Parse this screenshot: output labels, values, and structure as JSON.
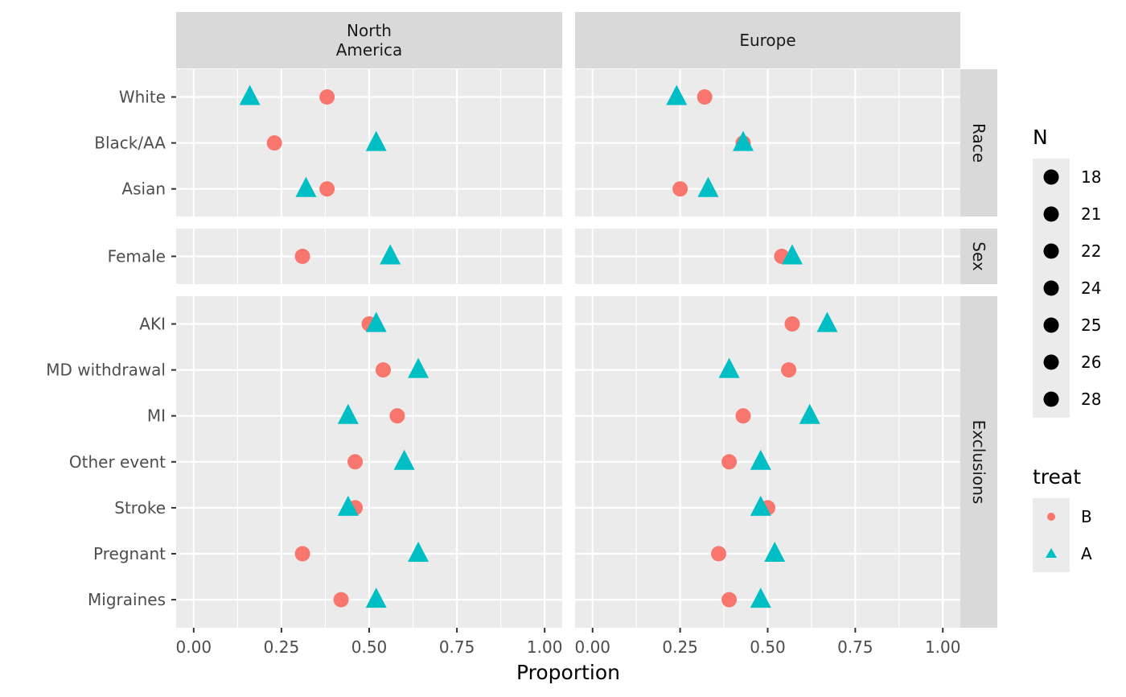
{
  "chart_data": {
    "type": "scatter",
    "xlabel": "Proportion",
    "xlim": [
      -0.05,
      1.05
    ],
    "x_ticks": [
      0.0,
      0.25,
      0.5,
      0.75,
      1.0
    ],
    "x_tick_labels": [
      "0.00",
      "0.25",
      "0.50",
      "0.75",
      "1.00"
    ],
    "columns": [
      {
        "key": "na",
        "label_lines": [
          "North",
          "America"
        ]
      },
      {
        "key": "eu",
        "label_lines": [
          "Europe"
        ]
      }
    ],
    "rows": [
      {
        "key": "race",
        "label": "Race",
        "categories": [
          "White",
          "Black/AA",
          "Asian"
        ]
      },
      {
        "key": "sex",
        "label": "Sex",
        "categories": [
          "Female"
        ]
      },
      {
        "key": "excl",
        "label": "Exclusions",
        "categories": [
          "AKI",
          "MD withdrawal",
          "MI",
          "Other event",
          "Stroke",
          "Pregnant",
          "Migraines"
        ]
      }
    ],
    "series": [
      {
        "name": "B",
        "shape": "circle",
        "color": "#F8766D",
        "values": {
          "na": {
            "White": 0.38,
            "Black/AA": 0.23,
            "Asian": 0.38,
            "Female": 0.31,
            "AKI": 0.5,
            "MD withdrawal": 0.54,
            "MI": 0.58,
            "Other event": 0.46,
            "Stroke": 0.46,
            "Pregnant": 0.31,
            "Migraines": 0.42
          },
          "eu": {
            "White": 0.32,
            "Black/AA": 0.43,
            "Asian": 0.25,
            "Female": 0.54,
            "AKI": 0.57,
            "MD withdrawal": 0.56,
            "MI": 0.43,
            "Other event": 0.39,
            "Stroke": 0.5,
            "Pregnant": 0.36,
            "Migraines": 0.39
          }
        }
      },
      {
        "name": "A",
        "shape": "triangle",
        "color": "#00BFC4",
        "values": {
          "na": {
            "White": 0.16,
            "Black/AA": 0.52,
            "Asian": 0.32,
            "Female": 0.56,
            "AKI": 0.52,
            "MD withdrawal": 0.64,
            "MI": 0.44,
            "Other event": 0.6,
            "Stroke": 0.44,
            "Pregnant": 0.64,
            "Migraines": 0.52
          },
          "eu": {
            "White": 0.24,
            "Black/AA": 0.43,
            "Asian": 0.33,
            "Female": 0.57,
            "AKI": 0.67,
            "MD withdrawal": 0.39,
            "MI": 0.62,
            "Other event": 0.48,
            "Stroke": 0.48,
            "Pregnant": 0.52,
            "Migraines": 0.48
          }
        }
      }
    ],
    "legend_size": {
      "title": "N",
      "values": [
        "18",
        "21",
        "22",
        "24",
        "25",
        "26",
        "28"
      ]
    },
    "legend_color": {
      "title": "treat",
      "entries": [
        "B",
        "A"
      ]
    }
  }
}
